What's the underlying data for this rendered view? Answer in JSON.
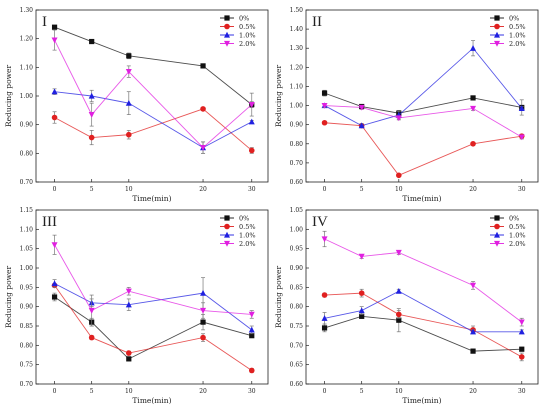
{
  "series_meta": [
    {
      "name": "0%",
      "color": "#111111",
      "marker": "square"
    },
    {
      "name": "0.5%",
      "color": "#e02020",
      "marker": "circle"
    },
    {
      "name": "1.0%",
      "color": "#2020e0",
      "marker": "triangle-up"
    },
    {
      "name": "2.0%",
      "color": "#e020e0",
      "marker": "triangle-down"
    }
  ],
  "chart_data": [
    {
      "type": "line",
      "panel_label": "I",
      "xlabel": "Time(min)",
      "ylabel": "Reducing power",
      "x": [
        0,
        5,
        10,
        20,
        30
      ],
      "xticks": [
        "0",
        "5",
        "10",
        "20",
        "30"
      ],
      "ylim": [
        0.7,
        1.3
      ],
      "yticks": [
        "0.70",
        "0.80",
        "0.90",
        "1.00",
        "1.10",
        "1.20",
        "1.30"
      ],
      "legend_position": "top-right",
      "series": [
        {
          "name": "0%",
          "values": [
            1.24,
            1.19,
            1.14,
            1.105,
            0.97
          ],
          "errors": [
            0.005,
            0.005,
            0.01,
            0.005,
            0.01
          ]
        },
        {
          "name": "0.5%",
          "values": [
            0.925,
            0.855,
            0.865,
            0.955,
            0.81
          ],
          "errors": [
            0.02,
            0.025,
            0.015,
            0.005,
            0.01
          ]
        },
        {
          "name": "1.0%",
          "values": [
            1.015,
            1.0,
            0.975,
            0.82,
            0.91
          ],
          "errors": [
            0.01,
            0.02,
            0.04,
            0.02,
            0.005
          ]
        },
        {
          "name": "2.0%",
          "values": [
            1.195,
            0.935,
            1.085,
            0.82,
            0.97
          ],
          "errors": [
            0.035,
            0.04,
            0.02,
            0.02,
            0.04
          ]
        }
      ]
    },
    {
      "type": "line",
      "panel_label": "II",
      "xlabel": "Time(min)",
      "ylabel": "Reducing power",
      "x": [
        0,
        5,
        10,
        20,
        30
      ],
      "xticks": [
        "0",
        "5",
        "10",
        "20",
        "30"
      ],
      "ylim": [
        0.6,
        1.5
      ],
      "yticks": [
        "0.60",
        "0.70",
        "0.80",
        "0.90",
        "1.00",
        "1.10",
        "1.20",
        "1.30",
        "1.40",
        "1.50"
      ],
      "legend_position": "top-right",
      "series": [
        {
          "name": "0%",
          "values": [
            1.065,
            0.995,
            0.96,
            1.04,
            0.99
          ],
          "errors": [
            0.015,
            0.01,
            0.015,
            0.01,
            0.04
          ]
        },
        {
          "name": "0.5%",
          "values": [
            0.91,
            0.895,
            0.635,
            0.8,
            0.84
          ],
          "errors": [
            0.005,
            0.005,
            0.005,
            0.005,
            0.01
          ]
        },
        {
          "name": "1.0%",
          "values": [
            1.0,
            0.895,
            0.95,
            1.3,
            0.985
          ],
          "errors": [
            0.01,
            0.01,
            0.02,
            0.04,
            0.01
          ]
        },
        {
          "name": "2.0%",
          "values": [
            1.0,
            0.99,
            0.935,
            0.985,
            0.835
          ],
          "errors": [
            0.01,
            0.01,
            0.01,
            0.01,
            0.01
          ]
        }
      ]
    },
    {
      "type": "line",
      "panel_label": "III",
      "xlabel": "Time(min)",
      "ylabel": "Reducing power",
      "x": [
        0,
        5,
        10,
        20,
        30
      ],
      "xticks": [
        "0",
        "5",
        "10",
        "20",
        "30"
      ],
      "ylim": [
        0.7,
        1.15
      ],
      "yticks": [
        "0.70",
        "0.75",
        "0.80",
        "0.85",
        "0.90",
        "0.95",
        "1.00",
        "1.05",
        "1.10",
        "1.15"
      ],
      "legend_position": "top-right",
      "series": [
        {
          "name": "0%",
          "values": [
            0.925,
            0.86,
            0.765,
            0.86,
            0.825
          ],
          "errors": [
            0.01,
            0.01,
            0.005,
            0.02,
            0.005
          ]
        },
        {
          "name": "0.5%",
          "values": [
            0.955,
            0.82,
            0.78,
            0.82,
            0.735
          ],
          "errors": [
            0.005,
            0.005,
            0.005,
            0.01,
            0.005
          ]
        },
        {
          "name": "1.0%",
          "values": [
            0.96,
            0.91,
            0.905,
            0.935,
            0.84
          ],
          "errors": [
            0.01,
            0.01,
            0.015,
            0.04,
            0.01
          ]
        },
        {
          "name": "2.0%",
          "values": [
            1.06,
            0.89,
            0.94,
            0.89,
            0.88
          ],
          "errors": [
            0.025,
            0.04,
            0.01,
            0.02,
            0.01
          ]
        }
      ]
    },
    {
      "type": "line",
      "panel_label": "IV",
      "xlabel": "Time(min)",
      "ylabel": "Reducing power",
      "x": [
        0,
        5,
        10,
        20,
        30
      ],
      "xticks": [
        "0",
        "5",
        "10",
        "20",
        "30"
      ],
      "ylim": [
        0.6,
        1.05
      ],
      "yticks": [
        "0.60",
        "0.65",
        "0.70",
        "0.75",
        "0.80",
        "0.85",
        "0.90",
        "0.95",
        "1.00",
        "1.05"
      ],
      "legend_position": "top-right",
      "series": [
        {
          "name": "0%",
          "values": [
            0.745,
            0.775,
            0.765,
            0.685,
            0.69
          ],
          "errors": [
            0.01,
            0.005,
            0.03,
            0.005,
            0.005
          ]
        },
        {
          "name": "0.5%",
          "values": [
            0.83,
            0.835,
            0.78,
            0.74,
            0.67
          ],
          "errors": [
            0.005,
            0.01,
            0.01,
            0.01,
            0.01
          ]
        },
        {
          "name": "1.0%",
          "values": [
            0.77,
            0.79,
            0.84,
            0.735,
            0.735
          ],
          "errors": [
            0.015,
            0.01,
            0.005,
            0.005,
            0.005
          ]
        },
        {
          "name": "2.0%",
          "values": [
            0.975,
            0.93,
            0.94,
            0.855,
            0.76
          ],
          "errors": [
            0.02,
            0.005,
            0.005,
            0.01,
            0.01
          ]
        }
      ]
    }
  ]
}
